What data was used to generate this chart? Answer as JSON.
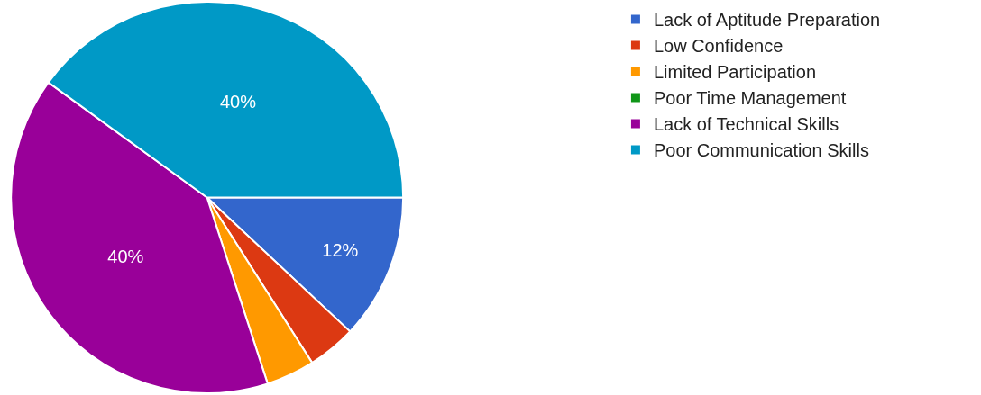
{
  "chart_data": {
    "type": "pie",
    "categories": [
      "Lack of Aptitude Preparation",
      "Low Confidence",
      "Limited Participation",
      "Poor Time Management",
      "Lack of Technical Skills",
      "Poor Communication Skills"
    ],
    "values": [
      12,
      4,
      4,
      0,
      40,
      40
    ],
    "colors": [
      "#3366cc",
      "#dc3912",
      "#ff9900",
      "#109618",
      "#990099",
      "#0099c6"
    ],
    "value_labels": [
      "12%",
      null,
      null,
      null,
      "40%",
      "40%"
    ],
    "legend": "top right"
  }
}
